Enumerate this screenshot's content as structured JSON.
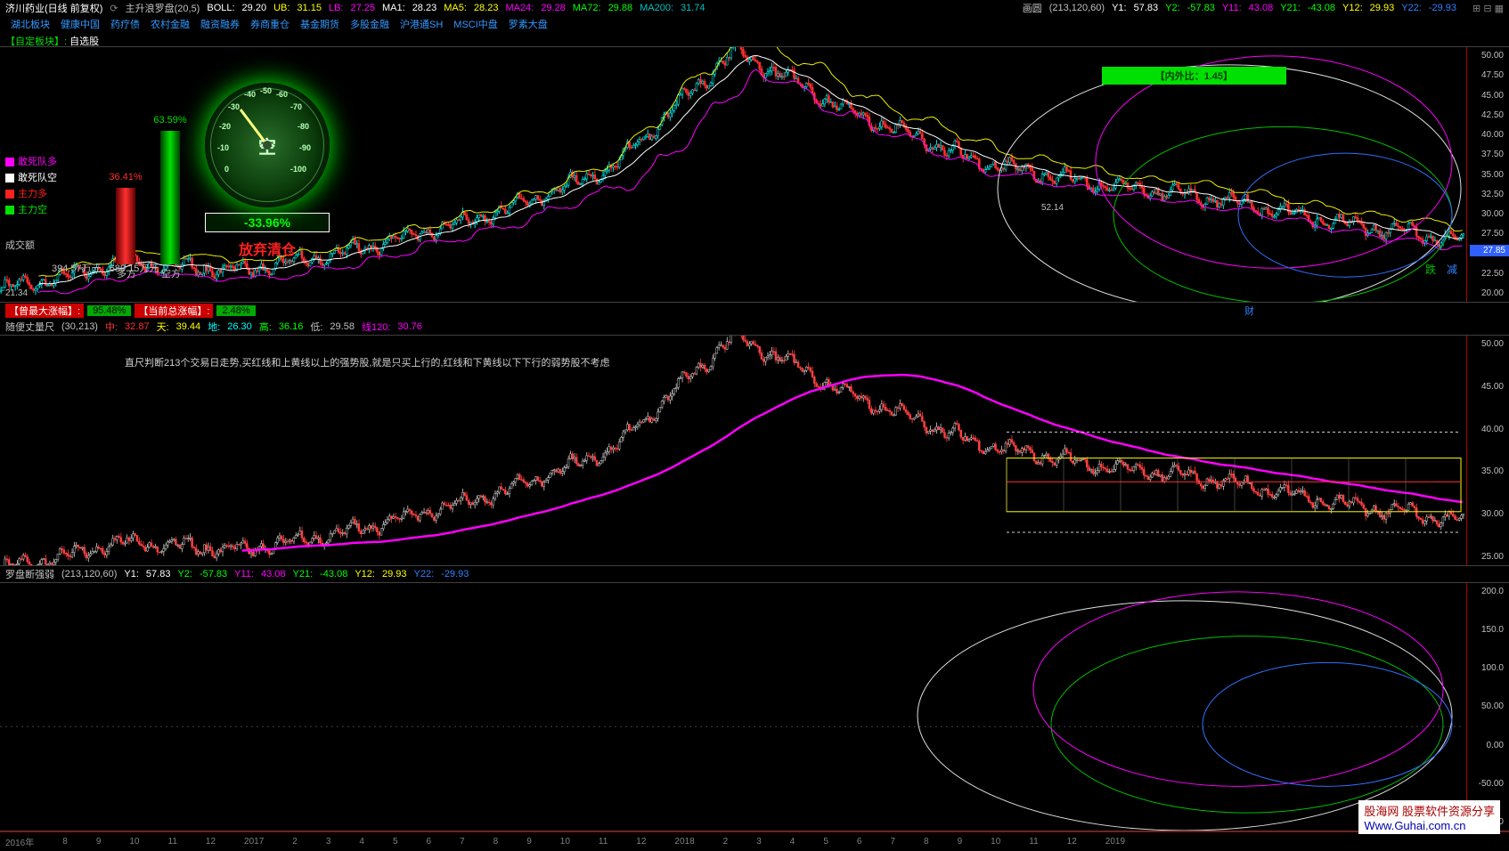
{
  "header": {
    "stock_name": "济川药业(日线 前复权)",
    "indicator_name": "主升浪罗盘(20,5)",
    "boll_label": "BOLL:",
    "boll_val": "29.20",
    "ub_label": "UB:",
    "ub_val": "31.15",
    "lb_label": "LB:",
    "lb_val": "27.25",
    "ma1_label": "MA1:",
    "ma1_val": "28.23",
    "ma5_label": "MA5:",
    "ma5_val": "28.23",
    "ma24_label": "MA24:",
    "ma24_val": "29.28",
    "ma72_label": "MA72:",
    "ma72_val": "29.88",
    "ma200_label": "MA200:",
    "ma200_val": "31.74",
    "huayuan_label": "画圆",
    "huayuan_params": "(213,120,60)",
    "y1_label": "Y1:",
    "y1_val": "57.83",
    "y2_label": "Y2:",
    "y2_val": "-57.83",
    "y11_label": "Y11:",
    "y11_val": "43.08",
    "y21_label": "Y21:",
    "y21_val": "-43.08",
    "y12_label": "Y12:",
    "y12_val": "29.93",
    "y22_label": "Y22:",
    "y22_val": "-29.93",
    "colors": {
      "stock": "#ffffff",
      "boll": "#ffffff",
      "ub": "#ffff00",
      "lb": "#ff00ff",
      "ma1": "#ffffff",
      "ma5": "#ffff00",
      "ma24": "#ff00ff",
      "ma72": "#00ff00",
      "ma200": "#00c0c0",
      "y_pos": "#ffffff",
      "y_neg": "#00ff00",
      "y11": "#ff00ff",
      "y12": "#ffff00",
      "y22": "#3080ff"
    }
  },
  "tags": {
    "items": [
      "湖北板块",
      "健康中国",
      "药疗债",
      "农村金融",
      "融资融券",
      "券商重仓",
      "基金期货",
      "多股金融",
      "沪港通SH",
      "MSCI中盘",
      "罗素大盘"
    ],
    "color": "#3399ff"
  },
  "custom_sector": {
    "label": "【自定板块】:",
    "value": "自选股",
    "label_color": "#00e000",
    "value_color": "#ffffff"
  },
  "gauge": {
    "left_pct": "36.41%",
    "right_pct": "63.59%",
    "left_color": "#ff3030",
    "right_color": "#00e000",
    "left_bar_h": 86,
    "right_bar_h": 150,
    "left_name": "多方",
    "right_name": "空方",
    "center_char": "空",
    "needle_pct": "-33.96%",
    "needle_color": "#00ff00",
    "action_text": "放弃清仓",
    "action_color": "#ff2020",
    "dial_ticks": [
      "-40",
      "-50",
      "-60",
      "-30",
      "-70",
      "-20",
      "-80",
      "-10",
      "-90",
      "0",
      "-100"
    ]
  },
  "legend": {
    "items": [
      {
        "label": "敢死队多",
        "color": "#ff00ff"
      },
      {
        "label": "敢死队空",
        "color": "#ffffff"
      },
      {
        "label": "主力多",
        "color": "#ff2020"
      },
      {
        "label": "主力空",
        "color": "#00e000"
      }
    ]
  },
  "volume": {
    "label": "成交额",
    "value": "394.57万元",
    "value2": "689.15万元"
  },
  "nwb": {
    "label": "【内外比：",
    "value": "1.45",
    "suffix": "】"
  },
  "panel1": {
    "ylim": [
      20.0,
      52.5
    ],
    "yticks": [
      "50.00",
      "47.50",
      "45.00",
      "42.50",
      "40.00",
      "37.50",
      "35.00",
      "32.50",
      "30.00",
      "27.50",
      "25.00",
      "22.50",
      "20.00"
    ],
    "price_marker": "27.85",
    "low_label": "21.34",
    "high_label": "52.14",
    "colors": {
      "up_candle": "#00e0e0",
      "down_candle": "#ff3030",
      "boll_mid": "#ffffff",
      "boll_upper": "#f0f000",
      "boll_lower": "#ff00ff",
      "ellipse1": "#e0e0e0",
      "ellipse2": "#00c000",
      "ellipse3": "#ff00ff",
      "ellipse4": "#3070ff"
    },
    "die_label": "跌",
    "jian_label": "减",
    "cai_label": "财"
  },
  "zf_row": {
    "label1": "【曾最大涨幅】:",
    "val1": "95.48%",
    "label2": "【当前总涨幅】:",
    "val2": "2.48%"
  },
  "panel2_header": {
    "title": "随便丈量尺",
    "params": "(30,213)",
    "zhong_label": "中:",
    "zhong_val": "32.87",
    "tian_label": "天:",
    "tian_val": "39.44",
    "di_label": "地:",
    "di_val": "26.30",
    "gao_label": "高:",
    "gao_val": "36.16",
    "di2_label": "低:",
    "di2_val": "29.58",
    "xian_label": "线120:",
    "xian_val": "30.76",
    "colors": {
      "zhong": "#ff3030",
      "tian": "#ffff00",
      "di": "#00ffff",
      "gao": "#00ff00",
      "di2": "#c0c0c0",
      "xian": "#ff00ff"
    }
  },
  "panel2": {
    "desc": "直尺判断213个交易日走势,买红线和上黄线以上的强势股,就是只买上行的,红线和下黄线以下下行的弱势股不考虑",
    "ylim": [
      22,
      52
    ],
    "yticks": [
      "50.00",
      "45.00",
      "40.00",
      "35.00",
      "30.00",
      "25.00"
    ],
    "ma_color": "#ff00ff",
    "box_color": "#ffff00",
    "dash_color": "#d0d0d0"
  },
  "panel3_header": {
    "title": "罗盘断强弱",
    "params": "(213,120,60)",
    "y1_label": "Y1:",
    "y1_val": "57.83",
    "y2_label": "Y2:",
    "y2_val": "-57.83",
    "y11_label": "Y11:",
    "y11_val": "43.08",
    "y21_label": "Y21:",
    "y21_val": "-43.08",
    "y12_label": "Y12:",
    "y12_val": "29.93",
    "y22_label": "Y22:",
    "y22_val": "-29.93"
  },
  "panel3": {
    "ylim": [
      -150,
      220
    ],
    "yticks": [
      "200.0",
      "150.0",
      "100.0",
      "50.00",
      "0.00",
      "-50.00",
      "-100.0"
    ],
    "colors": {
      "ellipse1": "#e0e0e0",
      "ellipse2": "#00c000",
      "ellipse3": "#ff00ff",
      "ellipse4": "#3070ff"
    }
  },
  "timeline": {
    "items": [
      "2016年",
      "8",
      "9",
      "10",
      "11",
      "12",
      "2017",
      "2",
      "3",
      "4",
      "5",
      "6",
      "7",
      "8",
      "9",
      "10",
      "11",
      "12",
      "2018",
      "2",
      "3",
      "4",
      "5",
      "6",
      "7",
      "8",
      "9",
      "10",
      "11",
      "12",
      "2019"
    ]
  },
  "watermark": {
    "line1": "股海网 股票软件资源分享",
    "line2": "Www.Guhai.com.cn"
  }
}
